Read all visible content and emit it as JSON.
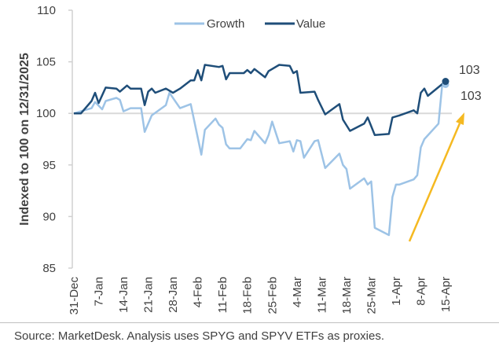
{
  "chart_data": {
    "type": "line",
    "title": "",
    "xlabel": "",
    "ylabel": "Indexed to 100 on 12/31/2025",
    "ylim": [
      85,
      110
    ],
    "yticks": [
      85,
      90,
      95,
      100,
      105,
      110
    ],
    "xlim": [
      "2025-12-31",
      "2026-04-15"
    ],
    "xtick_labels": [
      {
        "date": "2025-12-31",
        "label": "31-Dec"
      },
      {
        "date": "2026-01-07",
        "label": "7-Jan"
      },
      {
        "date": "2026-01-14",
        "label": "14-Jan"
      },
      {
        "date": "2026-01-21",
        "label": "21-Jan"
      },
      {
        "date": "2026-01-28",
        "label": "28-Jan"
      },
      {
        "date": "2026-02-04",
        "label": "4-Feb"
      },
      {
        "date": "2026-02-11",
        "label": "11-Feb"
      },
      {
        "date": "2026-02-18",
        "label": "18-Feb"
      },
      {
        "date": "2026-02-25",
        "label": "25-Feb"
      },
      {
        "date": "2026-03-04",
        "label": "4-Mar"
      },
      {
        "date": "2026-03-11",
        "label": "11-Mar"
      },
      {
        "date": "2026-03-18",
        "label": "18-Mar"
      },
      {
        "date": "2026-03-25",
        "label": "25-Mar"
      },
      {
        "date": "2026-04-01",
        "label": "1-Apr"
      },
      {
        "date": "2026-04-08",
        "label": "8-Apr"
      },
      {
        "date": "2026-04-15",
        "label": "15-Apr"
      }
    ],
    "reference_line": 100,
    "legend_position": "top",
    "series": [
      {
        "name": "Growth",
        "color": "#9DC3E6",
        "end_label": "103",
        "points": [
          [
            "2025-12-31",
            100
          ],
          [
            "2026-01-05",
            100.5
          ],
          [
            "2026-01-06",
            101.1
          ],
          [
            "2026-01-08",
            100.4
          ],
          [
            "2026-01-09",
            101.2
          ],
          [
            "2026-01-12",
            101.5
          ],
          [
            "2026-01-13",
            101.3
          ],
          [
            "2026-01-14",
            100.2
          ],
          [
            "2026-01-16",
            100.5
          ],
          [
            "2026-01-19",
            100.5
          ],
          [
            "2026-01-20",
            98.2
          ],
          [
            "2026-01-22",
            99.8
          ],
          [
            "2026-01-26",
            100.8
          ],
          [
            "2026-01-27",
            102.0
          ],
          [
            "2026-01-30",
            100.5
          ],
          [
            "2026-02-02",
            100.9
          ],
          [
            "2026-02-05",
            96.0
          ],
          [
            "2026-02-06",
            98.4
          ],
          [
            "2026-02-09",
            99.5
          ],
          [
            "2026-02-10",
            98.9
          ],
          [
            "2026-02-11",
            98.6
          ],
          [
            "2026-02-12",
            97.0
          ],
          [
            "2026-02-13",
            96.6
          ],
          [
            "2026-02-16",
            96.6
          ],
          [
            "2026-02-18",
            97.5
          ],
          [
            "2026-02-19",
            97.4
          ],
          [
            "2026-02-20",
            98.3
          ],
          [
            "2026-02-23",
            97.1
          ],
          [
            "2026-02-24",
            97.9
          ],
          [
            "2026-02-25",
            99.2
          ],
          [
            "2026-02-27",
            97.1
          ],
          [
            "2026-03-02",
            97.3
          ],
          [
            "2026-03-03",
            96.3
          ],
          [
            "2026-03-04",
            97.4
          ],
          [
            "2026-03-05",
            97.3
          ],
          [
            "2026-03-06",
            95.7
          ],
          [
            "2026-03-09",
            97.3
          ],
          [
            "2026-03-10",
            97.4
          ],
          [
            "2026-03-12",
            94.7
          ],
          [
            "2026-03-16",
            96.1
          ],
          [
            "2026-03-17",
            95.0
          ],
          [
            "2026-03-18",
            94.6
          ],
          [
            "2026-03-19",
            92.7
          ],
          [
            "2026-03-23",
            93.7
          ],
          [
            "2026-03-24",
            93.1
          ],
          [
            "2026-03-25",
            93.4
          ],
          [
            "2026-03-26",
            88.9
          ],
          [
            "2026-03-30",
            88.2
          ],
          [
            "2026-03-31",
            91.9
          ],
          [
            "2026-04-01",
            93.1
          ],
          [
            "2026-04-02",
            93.1
          ],
          [
            "2026-04-06",
            93.6
          ],
          [
            "2026-04-07",
            94.0
          ],
          [
            "2026-04-08",
            96.7
          ],
          [
            "2026-04-09",
            97.5
          ],
          [
            "2026-04-13",
            99.0
          ],
          [
            "2026-04-14",
            102.6
          ],
          [
            "2026-04-15",
            102.8
          ]
        ]
      },
      {
        "name": "Value",
        "color": "#1F4E79",
        "end_label": "103",
        "points": [
          [
            "2025-12-31",
            100
          ],
          [
            "2026-01-02",
            100.0
          ],
          [
            "2026-01-05",
            101.2
          ],
          [
            "2026-01-06",
            102.0
          ],
          [
            "2026-01-07",
            101.0
          ],
          [
            "2026-01-09",
            102.5
          ],
          [
            "2026-01-12",
            102.4
          ],
          [
            "2026-01-13",
            102.1
          ],
          [
            "2026-01-15",
            102.7
          ],
          [
            "2026-01-16",
            102.4
          ],
          [
            "2026-01-19",
            102.4
          ],
          [
            "2026-01-20",
            100.8
          ],
          [
            "2026-01-21",
            102.1
          ],
          [
            "2026-01-22",
            102.4
          ],
          [
            "2026-01-23",
            102.0
          ],
          [
            "2026-01-26",
            102.4
          ],
          [
            "2026-01-28",
            102.0
          ],
          [
            "2026-01-30",
            102.4
          ],
          [
            "2026-02-02",
            103.2
          ],
          [
            "2026-02-03",
            103.2
          ],
          [
            "2026-02-04",
            104.2
          ],
          [
            "2026-02-05",
            103.2
          ],
          [
            "2026-02-06",
            104.7
          ],
          [
            "2026-02-10",
            104.5
          ],
          [
            "2026-02-11",
            104.6
          ],
          [
            "2026-02-12",
            103.3
          ],
          [
            "2026-02-13",
            103.9
          ],
          [
            "2026-02-17",
            103.9
          ],
          [
            "2026-02-18",
            104.2
          ],
          [
            "2026-02-19",
            103.9
          ],
          [
            "2026-02-20",
            104.3
          ],
          [
            "2026-02-23",
            103.5
          ],
          [
            "2026-02-24",
            104.1
          ],
          [
            "2026-02-27",
            104.7
          ],
          [
            "2026-03-02",
            104.6
          ],
          [
            "2026-03-03",
            103.9
          ],
          [
            "2026-03-04",
            104.1
          ],
          [
            "2026-03-05",
            102.0
          ],
          [
            "2026-03-09",
            102.1
          ],
          [
            "2026-03-10",
            101.3
          ],
          [
            "2026-03-12",
            99.9
          ],
          [
            "2026-03-16",
            100.9
          ],
          [
            "2026-03-17",
            99.4
          ],
          [
            "2026-03-19",
            98.3
          ],
          [
            "2026-03-23",
            99.0
          ],
          [
            "2026-03-24",
            99.6
          ],
          [
            "2026-03-26",
            97.9
          ],
          [
            "2026-03-30",
            98.0
          ],
          [
            "2026-03-31",
            99.6
          ],
          [
            "2026-04-02",
            99.8
          ],
          [
            "2026-04-06",
            100.3
          ],
          [
            "2026-04-07",
            100.0
          ],
          [
            "2026-04-08",
            102.0
          ],
          [
            "2026-04-09",
            102.4
          ],
          [
            "2026-04-10",
            101.7
          ],
          [
            "2026-04-15",
            103.1
          ]
        ]
      }
    ],
    "annotation_arrow_color": "#F5B921"
  },
  "source": "Source: MarketDesk. Analysis uses SPYG and SPYV ETFs as proxies."
}
